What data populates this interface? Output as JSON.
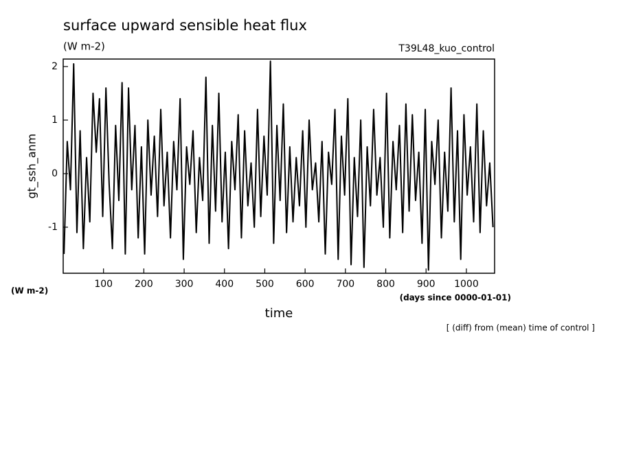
{
  "chart_data": {
    "type": "line",
    "title": "surface upward sensible heat flux",
    "units": "(W m-2)",
    "run_label": "T39L48_kuo_control",
    "ylabel": "gt_ssh_anm",
    "yunits": "(W m-2)",
    "xlabel": "time",
    "xunits": "(days since 0000-01-01)",
    "note": "[ (diff) from (mean) time of control ]",
    "xlim": [
      0,
      1070
    ],
    "ylim": [
      -1.86,
      2.14
    ],
    "xticks": [
      100,
      200,
      300,
      400,
      500,
      600,
      700,
      800,
      900,
      1000
    ],
    "yticks": [
      -1,
      0,
      1,
      2
    ],
    "x": [
      2,
      10,
      18,
      26,
      34,
      42,
      50,
      58,
      66,
      74,
      82,
      90,
      98,
      106,
      114,
      122,
      130,
      138,
      146,
      154,
      162,
      170,
      178,
      186,
      194,
      202,
      210,
      218,
      226,
      234,
      242,
      250,
      258,
      266,
      274,
      282,
      290,
      298,
      306,
      314,
      322,
      330,
      338,
      346,
      354,
      362,
      370,
      378,
      386,
      394,
      402,
      410,
      418,
      426,
      434,
      442,
      450,
      458,
      466,
      474,
      482,
      490,
      498,
      506,
      514,
      522,
      530,
      538,
      546,
      554,
      562,
      570,
      578,
      586,
      594,
      602,
      610,
      618,
      626,
      634,
      642,
      650,
      658,
      666,
      674,
      682,
      690,
      698,
      706,
      714,
      722,
      730,
      738,
      746,
      754,
      762,
      770,
      778,
      786,
      794,
      802,
      810,
      818,
      826,
      834,
      842,
      850,
      858,
      866,
      874,
      882,
      890,
      898,
      906,
      914,
      922,
      930,
      938,
      946,
      954,
      962,
      970,
      978,
      986,
      994,
      1002,
      1010,
      1018,
      1026,
      1034,
      1042,
      1050,
      1058,
      1066
    ],
    "series": [
      {
        "color": "#000000",
        "values": [
          -1.5,
          0.6,
          -0.3,
          2.05,
          -1.1,
          0.8,
          -1.4,
          0.3,
          -0.9,
          1.5,
          0.4,
          1.4,
          -0.8,
          1.6,
          -0.2,
          -1.4,
          0.9,
          -0.5,
          1.7,
          -1.5,
          1.6,
          -0.3,
          0.9,
          -1.2,
          0.5,
          -1.5,
          1.0,
          -0.4,
          0.7,
          -0.8,
          1.2,
          -0.6,
          0.4,
          -1.2,
          0.6,
          -0.3,
          1.4,
          -1.6,
          0.5,
          -0.2,
          0.8,
          -1.1,
          0.3,
          -0.5,
          1.8,
          -1.3,
          0.9,
          -0.7,
          1.5,
          -0.9,
          0.4,
          -1.4,
          0.6,
          -0.3,
          1.1,
          -1.2,
          0.8,
          -0.6,
          0.2,
          -1.0,
          1.2,
          -0.8,
          0.7,
          -0.4,
          2.1,
          -1.3,
          0.9,
          -0.5,
          1.3,
          -1.1,
          0.5,
          -0.9,
          0.3,
          -0.6,
          0.8,
          -1.0,
          1.0,
          -0.3,
          0.2,
          -0.9,
          0.6,
          -1.5,
          0.4,
          -0.2,
          1.2,
          -1.6,
          0.7,
          -0.4,
          1.4,
          -1.7,
          0.3,
          -0.8,
          1.0,
          -1.75,
          0.5,
          -0.6,
          1.2,
          -0.4,
          0.3,
          -1.0,
          1.5,
          -1.2,
          0.6,
          -0.3,
          0.9,
          -1.1,
          1.3,
          -0.7,
          1.1,
          -0.5,
          0.4,
          -1.3,
          1.2,
          -1.8,
          0.6,
          -0.2,
          1.0,
          -1.2,
          0.4,
          -0.7,
          1.6,
          -0.9,
          0.8,
          -1.6,
          1.1,
          -0.4,
          0.5,
          -0.9,
          1.3,
          -1.1,
          0.8,
          -0.6,
          0.2,
          -1.0
        ]
      }
    ]
  }
}
